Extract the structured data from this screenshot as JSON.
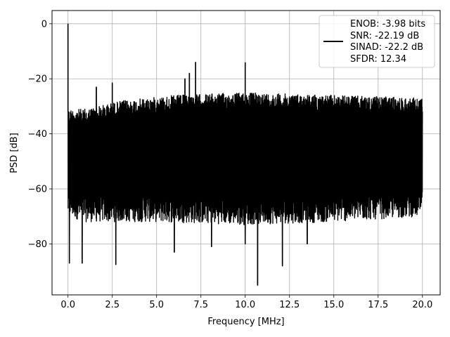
{
  "chart_data": {
    "type": "line",
    "title": "",
    "xlabel": "Frequency [MHz]",
    "ylabel": "PSD [dB]",
    "xlim": [
      -0.9,
      21.0
    ],
    "ylim": [
      -98.5,
      4.8
    ],
    "grid": true,
    "x_ticks": [
      0.0,
      2.5,
      5.0,
      7.5,
      10.0,
      12.5,
      15.0,
      17.5,
      20.0
    ],
    "x_tick_labels": [
      "0.0",
      "2.5",
      "5.0",
      "7.5",
      "10.0",
      "12.5",
      "15.0",
      "17.5",
      "20.0"
    ],
    "y_ticks": [
      0,
      -20,
      -40,
      -60,
      -80
    ],
    "y_tick_labels": [
      "0",
      "−20",
      "−40",
      "−60",
      "−80"
    ],
    "legend": {
      "placement": "top-right",
      "lines": [
        "ENOB: -3.98 bits",
        "SNR: -22.19 dB",
        "SINAD: -22.2 dB",
        "SFDR: 12.34"
      ]
    },
    "series": [
      {
        "color": "#000000",
        "noise_band": {
          "x_range": [
            0.0,
            20.0
          ],
          "upper": [
            [
              0.0,
              -31
            ],
            [
              1.0,
              -31
            ],
            [
              3.0,
              -28
            ],
            [
              6.0,
              -26
            ],
            [
              10.0,
              -25
            ],
            [
              15.0,
              -26
            ],
            [
              20.0,
              -27
            ]
          ],
          "lower": [
            [
              0.0,
              -70
            ],
            [
              1.0,
              -72
            ],
            [
              5.0,
              -72
            ],
            [
              10.0,
              -73
            ],
            [
              15.0,
              -72
            ],
            [
              20.0,
              -70
            ]
          ]
        },
        "peaks": [
          {
            "x": 0.0,
            "y": 0.0
          },
          {
            "x": 1.6,
            "y": -23.0
          },
          {
            "x": 2.5,
            "y": -21.5
          },
          {
            "x": 6.6,
            "y": -20.0
          },
          {
            "x": 6.85,
            "y": -18.0
          },
          {
            "x": 7.2,
            "y": -14.0
          },
          {
            "x": 10.0,
            "y": -14.0
          }
        ],
        "dips": [
          {
            "x": 0.08,
            "y": -87.0
          },
          {
            "x": 0.8,
            "y": -87.0
          },
          {
            "x": 2.7,
            "y": -87.5
          },
          {
            "x": 10.7,
            "y": -95.0
          },
          {
            "x": 12.1,
            "y": -88.0
          },
          {
            "x": 6.0,
            "y": -83.0
          },
          {
            "x": 8.1,
            "y": -81.0
          },
          {
            "x": 10.0,
            "y": -80.0
          },
          {
            "x": 13.5,
            "y": -80.0
          }
        ]
      }
    ]
  }
}
